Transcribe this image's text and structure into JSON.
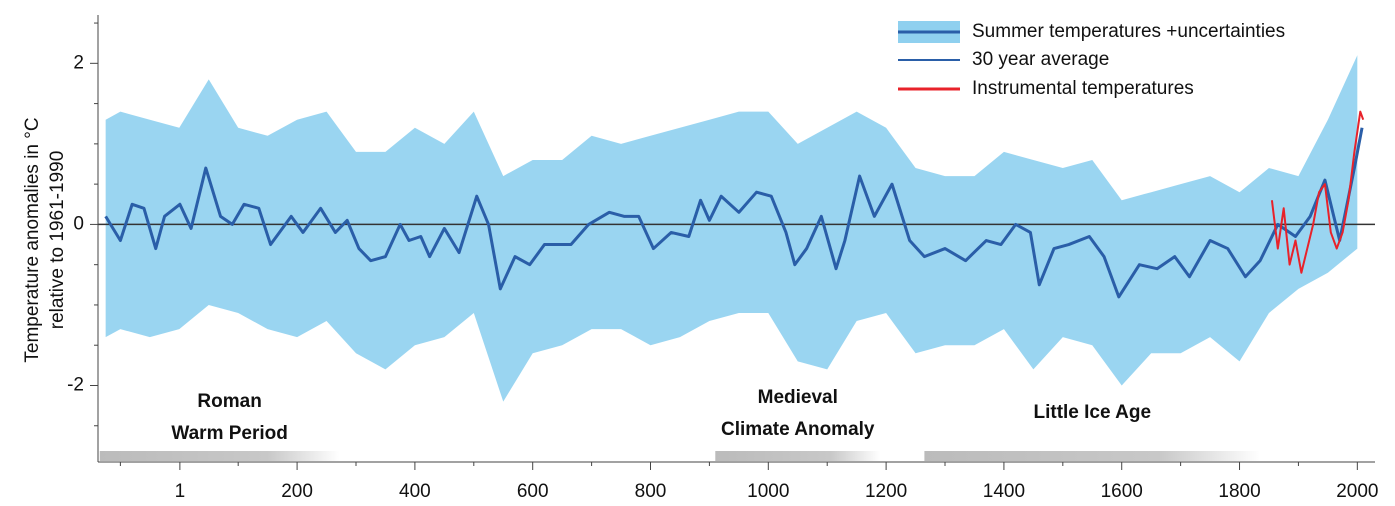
{
  "chart_data": {
    "type": "line",
    "ylabel": [
      "Temperature anomalies in °C",
      "relative to 1961-1990"
    ],
    "xlim": [
      -138,
      2030
    ],
    "ylim": [
      -2.95,
      2.6
    ],
    "xticks": [
      1,
      200,
      400,
      600,
      800,
      1000,
      1200,
      1400,
      1600,
      1800,
      2000
    ],
    "xminor_ticks": [
      -100,
      100,
      300,
      500,
      700,
      900,
      1100,
      1300,
      1500,
      1700,
      1900
    ],
    "yticks": [
      -2,
      0,
      2
    ],
    "yminor_ticks": [
      -2.5,
      -1.5,
      -1,
      -0.5,
      0.5,
      1,
      1.5,
      2.5
    ],
    "zero_line": true,
    "legend": "top-right",
    "series": [
      {
        "name": "Summer temperatures +uncertainties",
        "color": "#8fd0ef",
        "x": [
          -125,
          -100,
          -50,
          0,
          50,
          100,
          150,
          200,
          250,
          300,
          350,
          400,
          450,
          500,
          550,
          600,
          650,
          700,
          750,
          800,
          850,
          900,
          950,
          1000,
          1050,
          1100,
          1150,
          1200,
          1250,
          1300,
          1350,
          1400,
          1450,
          1500,
          1550,
          1600,
          1650,
          1700,
          1750,
          1800,
          1850,
          1900,
          1950,
          2000
        ],
        "upper": [
          1.3,
          1.4,
          1.3,
          1.2,
          1.8,
          1.2,
          1.1,
          1.3,
          1.4,
          0.9,
          0.9,
          1.2,
          1.0,
          1.4,
          0.6,
          0.8,
          0.8,
          1.1,
          1.0,
          1.1,
          1.2,
          1.3,
          1.4,
          1.4,
          1.0,
          1.2,
          1.4,
          1.2,
          0.7,
          0.6,
          0.6,
          0.9,
          0.8,
          0.7,
          0.8,
          0.3,
          0.4,
          0.5,
          0.6,
          0.4,
          0.7,
          0.6,
          1.3,
          2.1
        ],
        "lower": [
          -1.4,
          -1.3,
          -1.4,
          -1.3,
          -1.0,
          -1.1,
          -1.3,
          -1.4,
          -1.2,
          -1.6,
          -1.8,
          -1.5,
          -1.4,
          -1.1,
          -2.2,
          -1.6,
          -1.5,
          -1.3,
          -1.3,
          -1.5,
          -1.4,
          -1.2,
          -1.1,
          -1.1,
          -1.7,
          -1.8,
          -1.2,
          -1.1,
          -1.6,
          -1.5,
          -1.5,
          -1.3,
          -1.8,
          -1.4,
          -1.5,
          -2.0,
          -1.6,
          -1.6,
          -1.4,
          -1.7,
          -1.1,
          -0.8,
          -0.6,
          -0.3
        ]
      },
      {
        "name": "30 year average",
        "color": "#2a5ea8",
        "x": [
          -125,
          -100,
          -80,
          -60,
          -40,
          -25,
          1,
          20,
          45,
          70,
          90,
          110,
          135,
          155,
          190,
          210,
          240,
          265,
          285,
          305,
          325,
          350,
          375,
          390,
          410,
          425,
          450,
          475,
          505,
          525,
          545,
          570,
          595,
          620,
          665,
          695,
          730,
          755,
          780,
          805,
          835,
          865,
          885,
          900,
          920,
          950,
          980,
          1005,
          1030,
          1045,
          1065,
          1090,
          1115,
          1130,
          1155,
          1180,
          1210,
          1240,
          1265,
          1300,
          1335,
          1370,
          1395,
          1420,
          1445,
          1460,
          1485,
          1510,
          1545,
          1570,
          1595,
          1630,
          1660,
          1690,
          1715,
          1750,
          1780,
          1810,
          1835,
          1865,
          1895,
          1920,
          1945,
          1970,
          1995,
          2008
        ],
        "values": [
          0.1,
          -0.2,
          0.25,
          0.2,
          -0.3,
          0.1,
          0.25,
          -0.05,
          0.7,
          0.1,
          0.0,
          0.25,
          0.2,
          -0.25,
          0.1,
          -0.1,
          0.2,
          -0.1,
          0.05,
          -0.3,
          -0.45,
          -0.4,
          0.0,
          -0.2,
          -0.15,
          -0.4,
          -0.05,
          -0.35,
          0.35,
          0.0,
          -0.8,
          -0.4,
          -0.5,
          -0.25,
          -0.25,
          0.0,
          0.15,
          0.1,
          0.1,
          -0.3,
          -0.1,
          -0.15,
          0.3,
          0.05,
          0.35,
          0.15,
          0.4,
          0.35,
          -0.1,
          -0.5,
          -0.3,
          0.1,
          -0.55,
          -0.2,
          0.6,
          0.1,
          0.5,
          -0.2,
          -0.4,
          -0.3,
          -0.45,
          -0.2,
          -0.25,
          0.0,
          -0.1,
          -0.75,
          -0.3,
          -0.25,
          -0.15,
          -0.4,
          -0.9,
          -0.5,
          -0.55,
          -0.4,
          -0.65,
          -0.2,
          -0.3,
          -0.65,
          -0.45,
          0.0,
          -0.15,
          0.1,
          0.55,
          -0.2,
          0.7,
          1.2
        ]
      },
      {
        "name": "Instrumental temperatures",
        "color": "#e8222a",
        "x": [
          1855,
          1865,
          1875,
          1885,
          1895,
          1905,
          1915,
          1925,
          1935,
          1945,
          1955,
          1965,
          1975,
          1985,
          1995,
          2005,
          2010
        ],
        "values": [
          0.3,
          -0.3,
          0.2,
          -0.5,
          -0.2,
          -0.6,
          -0.3,
          0.0,
          0.4,
          0.5,
          -0.1,
          -0.3,
          -0.1,
          0.3,
          0.9,
          1.4,
          1.3
        ]
      }
    ],
    "periods": [
      {
        "lines": [
          "Roman",
          "Warm Period"
        ],
        "start": -135,
        "end": 272
      },
      {
        "lines": [
          "Medieval",
          "Climate Anomaly"
        ],
        "start": 910,
        "end": 1190
      },
      {
        "lines": [
          "Little Ice Age"
        ],
        "start": 1265,
        "end": 1835
      }
    ]
  }
}
